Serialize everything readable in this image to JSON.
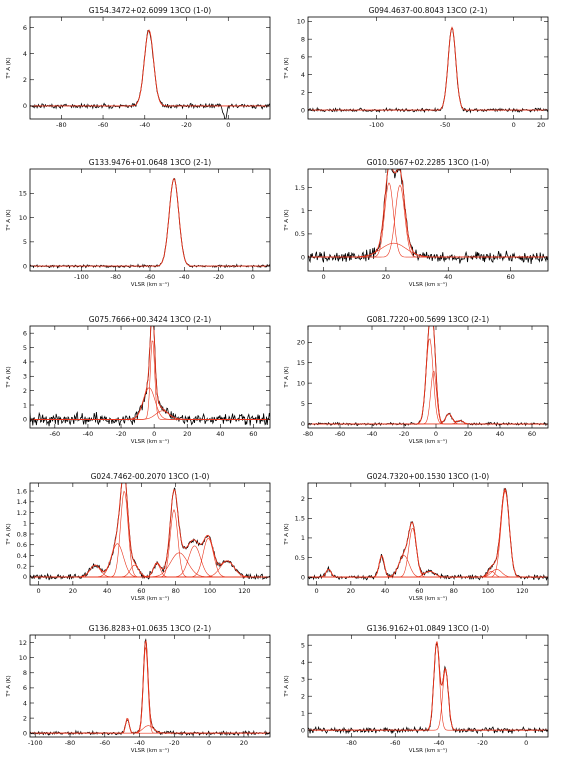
{
  "colors": {
    "spectrum": "#000000",
    "fit": "#e8341c",
    "axes": "#000000"
  },
  "chart_data": [
    {
      "type": "line",
      "title": "G154.3472+02.6099 13CO (1-0)",
      "xlabel": "",
      "ylabel": "T* A (K)",
      "xlim": [
        -95,
        20
      ],
      "ylim": [
        -1,
        6.8
      ],
      "xticks": [
        -80,
        -60,
        -40,
        -20,
        0
      ],
      "yticks": [
        0,
        2,
        4,
        6
      ],
      "noise": 0.1,
      "components": [
        {
          "amp": 5.8,
          "center": -38,
          "width": 2.2
        }
      ],
      "absorption": [
        {
          "center": -1.5,
          "depth": 1.1,
          "width": 0.8
        }
      ]
    },
    {
      "type": "line",
      "title": "G094.4637-00.8043 13CO (2-1)",
      "xlabel": "",
      "ylabel": "T* A (K)",
      "xlim": [
        -150,
        25
      ],
      "ylim": [
        -1,
        10.5
      ],
      "xticks": [
        -100,
        -50,
        0,
        20
      ],
      "yticks": [
        0,
        2,
        4,
        6,
        8,
        10
      ],
      "noise": 0.12,
      "components": [
        {
          "amp": 9.3,
          "center": -45,
          "width": 2.8
        }
      ]
    },
    {
      "type": "line",
      "title": "G133.9476+01.0648 13CO (2-1)",
      "xlabel": "VLSR (km s⁻¹)",
      "ylabel": "T* A (K)",
      "xlim": [
        -130,
        10
      ],
      "ylim": [
        -1,
        20
      ],
      "xticks": [
        -100,
        -80,
        -60,
        -40,
        -20,
        0
      ],
      "yticks": [
        0,
        5,
        10,
        15
      ],
      "noise": 0.15,
      "components": [
        {
          "amp": 18,
          "center": -46,
          "width": 2.8
        }
      ]
    },
    {
      "type": "line",
      "title": "G010.5067+02.2285 13CO (1-0)",
      "xlabel": "VLSR (km s⁻¹)",
      "ylabel": "T* A (K)",
      "xlim": [
        -5,
        72
      ],
      "ylim": [
        -0.3,
        1.9
      ],
      "xticks": [
        0,
        20,
        40,
        60
      ],
      "yticks": [
        0,
        0.5,
        1.0,
        1.5
      ],
      "noise": 0.07,
      "components": [
        {
          "amp": 1.6,
          "center": 21,
          "width": 1.4
        },
        {
          "amp": 1.55,
          "center": 24.5,
          "width": 1.5
        },
        {
          "amp": 0.3,
          "center": 22.5,
          "width": 4
        }
      ]
    },
    {
      "type": "line",
      "title": "G075.7666+00.3424 13CO (2-1)",
      "xlabel": "VLSR (km s⁻¹)",
      "ylabel": "T* A (K)",
      "xlim": [
        -75,
        70
      ],
      "ylim": [
        -0.6,
        6.5
      ],
      "xticks": [
        -60,
        -40,
        -20,
        0,
        20,
        40,
        60
      ],
      "yticks": [
        0,
        1,
        2,
        3,
        4,
        5,
        6
      ],
      "noise": 0.25,
      "components": [
        {
          "amp": 5.6,
          "center": -1,
          "width": 1.3
        },
        {
          "amp": 2.2,
          "center": -3,
          "width": 3.5
        },
        {
          "amp": 0.6,
          "center": 5,
          "width": 4
        }
      ]
    },
    {
      "type": "line",
      "title": "G081.7220+00.5699 13CO (2-1)",
      "xlabel": "VLSR (km s⁻¹)",
      "ylabel": "T* A (K)",
      "xlim": [
        -80,
        70
      ],
      "ylim": [
        -1,
        24
      ],
      "xticks": [
        -80,
        -60,
        -40,
        -20,
        0,
        20,
        40,
        60
      ],
      "yticks": [
        0,
        5,
        10,
        15,
        20
      ],
      "noise": 0.2,
      "components": [
        {
          "amp": 21,
          "center": -4,
          "width": 2.2
        },
        {
          "amp": 13,
          "center": -1.5,
          "width": 1.8
        },
        {
          "amp": 2.5,
          "center": 8,
          "width": 2
        },
        {
          "amp": 0.8,
          "center": 15,
          "width": 2
        }
      ]
    },
    {
      "type": "line",
      "title": "G024.7462-00.2070 13CO (1-0)",
      "xlabel": "VLSR (km s⁻¹)",
      "ylabel": "T* A (K)",
      "xlim": [
        -5,
        135
      ],
      "ylim": [
        -0.15,
        1.75
      ],
      "xticks": [
        0,
        20,
        40,
        60,
        80,
        100,
        120
      ],
      "yticks": [
        0,
        0.2,
        0.4,
        0.6,
        0.8,
        1.0,
        1.2,
        1.4,
        1.6
      ],
      "noise": 0.03,
      "components": [
        {
          "amp": 0.22,
          "center": 33,
          "width": 3
        },
        {
          "amp": 0.62,
          "center": 46,
          "width": 3.5
        },
        {
          "amp": 1.6,
          "center": 50,
          "width": 2.2
        },
        {
          "amp": 0.22,
          "center": 56,
          "width": 2.5
        },
        {
          "amp": 0.25,
          "center": 69,
          "width": 2
        },
        {
          "amp": 1.25,
          "center": 79,
          "width": 2.2
        },
        {
          "amp": 0.45,
          "center": 82,
          "width": 5
        },
        {
          "amp": 0.58,
          "center": 91,
          "width": 3.5
        },
        {
          "amp": 0.72,
          "center": 99,
          "width": 3
        },
        {
          "amp": 0.3,
          "center": 110,
          "width": 4
        }
      ]
    },
    {
      "type": "line",
      "title": "G024.7320+00.1530 13CO (1-0)",
      "xlabel": "VLSR (km s⁻¹)",
      "ylabel": "T* A (K)",
      "xlim": [
        -5,
        135
      ],
      "ylim": [
        -0.2,
        2.4
      ],
      "xticks": [
        0,
        20,
        40,
        60,
        80,
        100,
        120
      ],
      "yticks": [
        0,
        0.5,
        1.0,
        1.5,
        2.0
      ],
      "noise": 0.035,
      "components": [
        {
          "amp": 0.2,
          "center": 7,
          "width": 1.5
        },
        {
          "amp": 0.55,
          "center": 38,
          "width": 1.5
        },
        {
          "amp": 0.55,
          "center": 51,
          "width": 3
        },
        {
          "amp": 1.25,
          "center": 56,
          "width": 2.2
        },
        {
          "amp": 0.15,
          "center": 66,
          "width": 3
        },
        {
          "amp": 0.15,
          "center": 102,
          "width": 2
        },
        {
          "amp": 2.2,
          "center": 110,
          "width": 2.4
        },
        {
          "amp": 0.2,
          "center": 105,
          "width": 3
        }
      ]
    },
    {
      "type": "line",
      "title": "G136.8283+01.0635 13CO (2-1)",
      "xlabel": "VLSR (km s⁻¹)",
      "ylabel": "T* A (K)",
      "xlim": [
        -103,
        35
      ],
      "ylim": [
        -0.5,
        13
      ],
      "xticks": [
        -100,
        -80,
        -60,
        -40,
        -20,
        0,
        20
      ],
      "yticks": [
        0,
        2,
        4,
        6,
        8,
        10,
        12
      ],
      "noise": 0.15,
      "components": [
        {
          "amp": 11.5,
          "center": -36.5,
          "width": 1.3
        },
        {
          "amp": 2.0,
          "center": -47,
          "width": 1.0
        },
        {
          "amp": 1.0,
          "center": -35,
          "width": 3
        }
      ]
    },
    {
      "type": "line",
      "title": "G136.9162+01.0849 13CO (1-0)",
      "xlabel": "VLSR (km s⁻¹)",
      "ylabel": "T* A (K)",
      "xlim": [
        -100,
        10
      ],
      "ylim": [
        -0.4,
        5.6
      ],
      "xticks": [
        -80,
        -60,
        -40,
        -20,
        0
      ],
      "yticks": [
        0,
        1,
        2,
        3,
        4,
        5
      ],
      "noise": 0.1,
      "components": [
        {
          "amp": 5.2,
          "center": -41,
          "width": 1.3
        },
        {
          "amp": 3.6,
          "center": -37,
          "width": 1.3
        }
      ]
    }
  ]
}
